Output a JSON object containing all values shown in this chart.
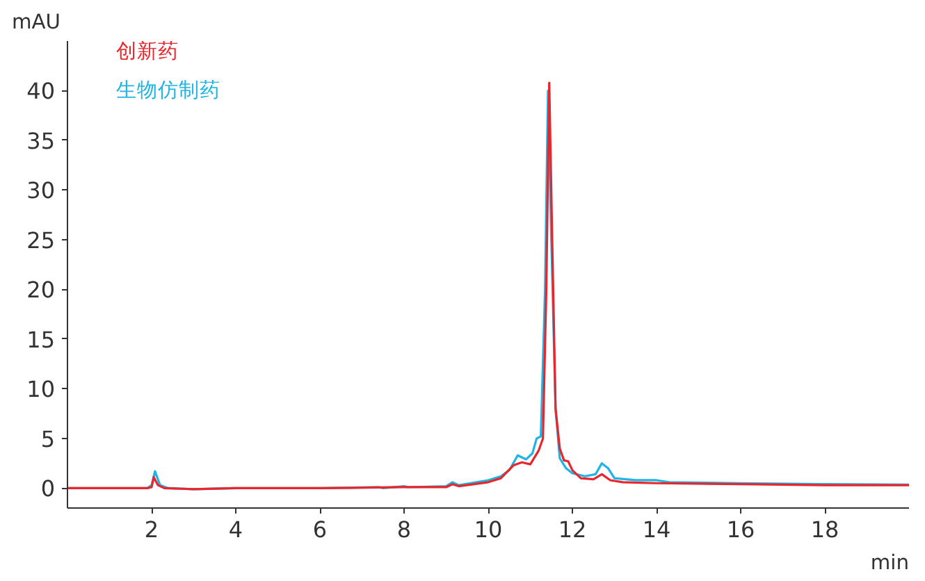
{
  "chart_data": {
    "type": "line",
    "xlabel": "min",
    "ylabel": "mAU",
    "xlim": [
      0,
      20
    ],
    "ylim": [
      -2,
      45
    ],
    "xticks": [
      2,
      4,
      6,
      8,
      10,
      12,
      14,
      16,
      18
    ],
    "yticks": [
      0,
      5,
      10,
      15,
      20,
      25,
      30,
      35,
      40
    ],
    "grid": false,
    "legend": "top left",
    "marker": "none",
    "line_style": "solid",
    "series": [
      {
        "name": "生物仿制药",
        "color": "#1eb4e6",
        "x": [
          0,
          1.9,
          2.0,
          2.08,
          2.2,
          2.4,
          3,
          4,
          6,
          7.4,
          7.5,
          8,
          8.1,
          9,
          9.15,
          9.3,
          10,
          10.3,
          10.5,
          10.7,
          10.9,
          11.05,
          11.15,
          11.25,
          11.35,
          11.42,
          11.5,
          11.6,
          11.7,
          11.85,
          12.0,
          12.3,
          12.55,
          12.7,
          12.85,
          13.0,
          13.5,
          14,
          14.3,
          16,
          18,
          20
        ],
        "values": [
          0,
          0,
          0.3,
          1.7,
          0.3,
          0,
          -0.1,
          0,
          0,
          0.1,
          0,
          0.2,
          0.1,
          0.2,
          0.6,
          0.3,
          0.8,
          1.2,
          1.8,
          3.3,
          2.9,
          3.5,
          5,
          5.2,
          20,
          40,
          25,
          8,
          3,
          2,
          1.5,
          1.2,
          1.4,
          2.5,
          2.0,
          1.0,
          0.8,
          0.8,
          0.6,
          0.5,
          0.4,
          0.35
        ]
      },
      {
        "name": "创新药",
        "color": "#e8262b",
        "x": [
          0,
          1.9,
          2.0,
          2.05,
          2.15,
          2.3,
          3,
          4,
          6,
          8,
          9,
          9.15,
          9.3,
          10,
          10.3,
          10.6,
          10.8,
          11.0,
          11.2,
          11.3,
          11.38,
          11.45,
          11.52,
          11.6,
          11.7,
          11.8,
          11.9,
          12.0,
          12.2,
          12.5,
          12.7,
          12.9,
          13.2,
          14,
          16,
          18,
          20
        ],
        "values": [
          0,
          0,
          0.1,
          1.1,
          0.3,
          0,
          -0.1,
          0,
          0,
          0.1,
          0.1,
          0.4,
          0.2,
          0.6,
          1,
          2.3,
          2.6,
          2.4,
          3.8,
          5,
          20,
          40.8,
          25,
          8,
          4,
          2.8,
          2.7,
          1.8,
          1.0,
          0.9,
          1.4,
          0.8,
          0.6,
          0.5,
          0.4,
          0.3,
          0.3
        ]
      }
    ]
  }
}
